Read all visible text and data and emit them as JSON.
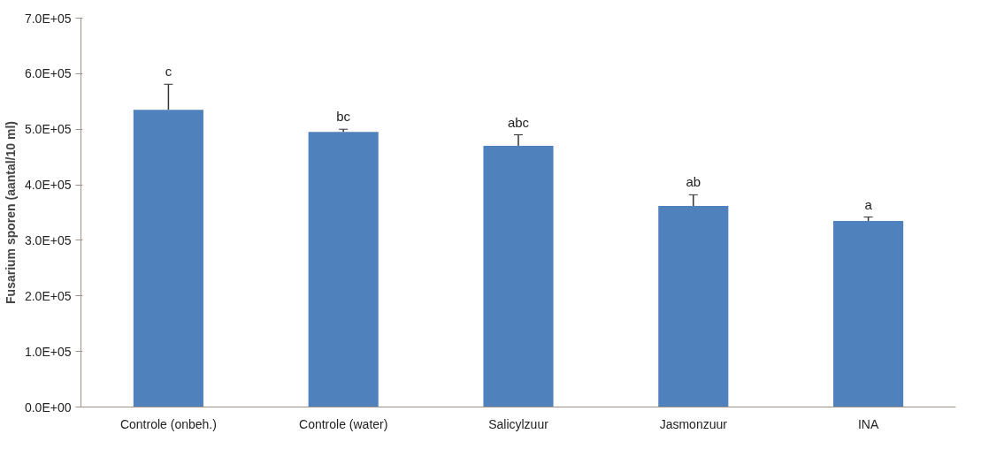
{
  "chart_data": {
    "type": "bar",
    "ylabel": "Fusarium sporen (aantal/10 ml)",
    "categories": [
      "Controle (onbeh.)",
      "Controle (water)",
      "Salicylzuur",
      "Jasmonzuur",
      "INA"
    ],
    "values": [
      535000,
      495000,
      470000,
      362000,
      335000
    ],
    "errors": [
      46000,
      5000,
      20000,
      20000,
      7000
    ],
    "color": "#4f81bd",
    "ylim": [
      0,
      700000
    ],
    "yticks": [
      {
        "value": 0,
        "label": "0.0E+00"
      },
      {
        "value": 100000,
        "label": "1.0E+05"
      },
      {
        "value": 200000,
        "label": "2.0E+05"
      },
      {
        "value": 300000,
        "label": "3.0E+05"
      },
      {
        "value": 400000,
        "label": "4.0E+05"
      },
      {
        "value": 500000,
        "label": "5.0E+05"
      },
      {
        "value": 600000,
        "label": "6.0E+05"
      },
      {
        "value": 700000,
        "label": "7.0E+05"
      }
    ],
    "annotations": [
      {
        "text": "c",
        "x": "Controle (onbeh.)",
        "y": 581000
      },
      {
        "text": "bc",
        "x": "Controle (water)",
        "y": 500000
      },
      {
        "text": "abc",
        "x": "Salicylzuur",
        "y": 490000
      },
      {
        "text": "ab",
        "x": "Jasmonzuur",
        "y": 382000
      },
      {
        "text": "a",
        "x": "INA",
        "y": 342000
      }
    ],
    "grid": false
  }
}
